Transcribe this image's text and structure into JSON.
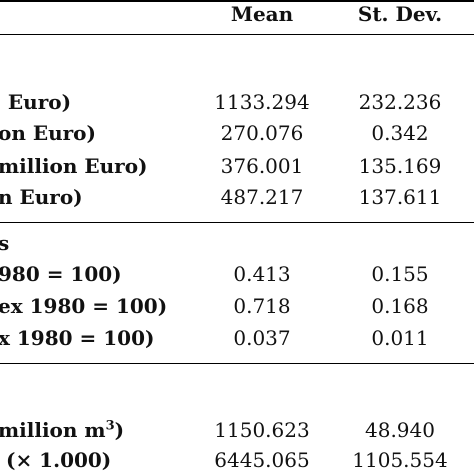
{
  "table": {
    "headers": {
      "mean": "Mean",
      "sd": "St. Dev."
    },
    "rows": [
      {
        "label": ". Euro)",
        "mean": "1133.294",
        "sd": "232.236"
      },
      {
        "label": "on Euro)",
        "mean": "270.076",
        "sd": "0.342"
      },
      {
        "label": "million Euro)",
        "mean": "376.001",
        "sd": "135.169"
      },
      {
        "label": "n Euro)",
        "mean": "487.217",
        "sd": "137.611"
      },
      {
        "label": "s",
        "mean": "",
        "sd": ""
      },
      {
        "label": "980 = 100)",
        "mean": "0.413",
        "sd": "0.155"
      },
      {
        "label": "ex 1980 = 100)",
        "mean": "0.718",
        "sd": "0.168"
      },
      {
        "label": "x 1980 = 100)",
        "mean": "0.037",
        "sd": "0.011"
      },
      {
        "label": " million m",
        "label_sup": "3",
        "label_tail": ")",
        "mean": "1150.623",
        "sd": "48.940"
      },
      {
        "label": "(× 1.000)",
        "mean": "6445.065",
        "sd": "1105.554"
      }
    ]
  }
}
